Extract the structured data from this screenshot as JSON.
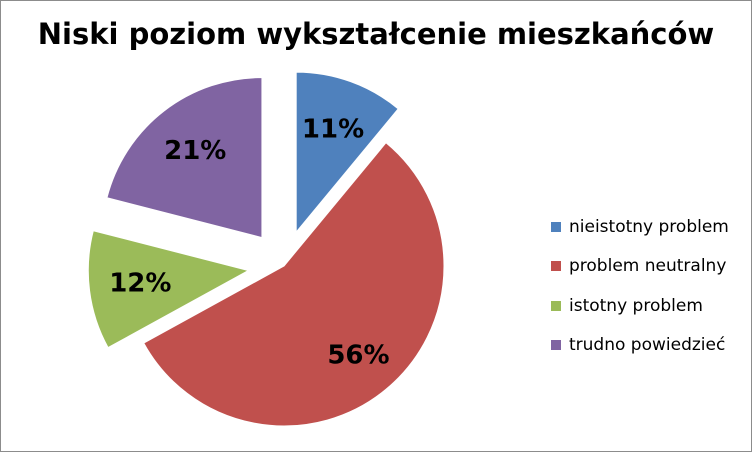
{
  "chart_data": {
    "type": "pie",
    "title": "Niski poziom wykształcenie mieszkańców",
    "categories": [
      "nieistotny problem",
      "problem neutralny",
      "istotny problem",
      "trudno powiedzieć"
    ],
    "values": [
      11,
      56,
      12,
      21
    ],
    "data_labels": [
      "11%",
      "56%",
      "12%",
      "21%"
    ],
    "colors": [
      "#4F81BD",
      "#C0504D",
      "#9BBB59",
      "#8064A2"
    ],
    "exploded": true,
    "legend_position": "right"
  }
}
